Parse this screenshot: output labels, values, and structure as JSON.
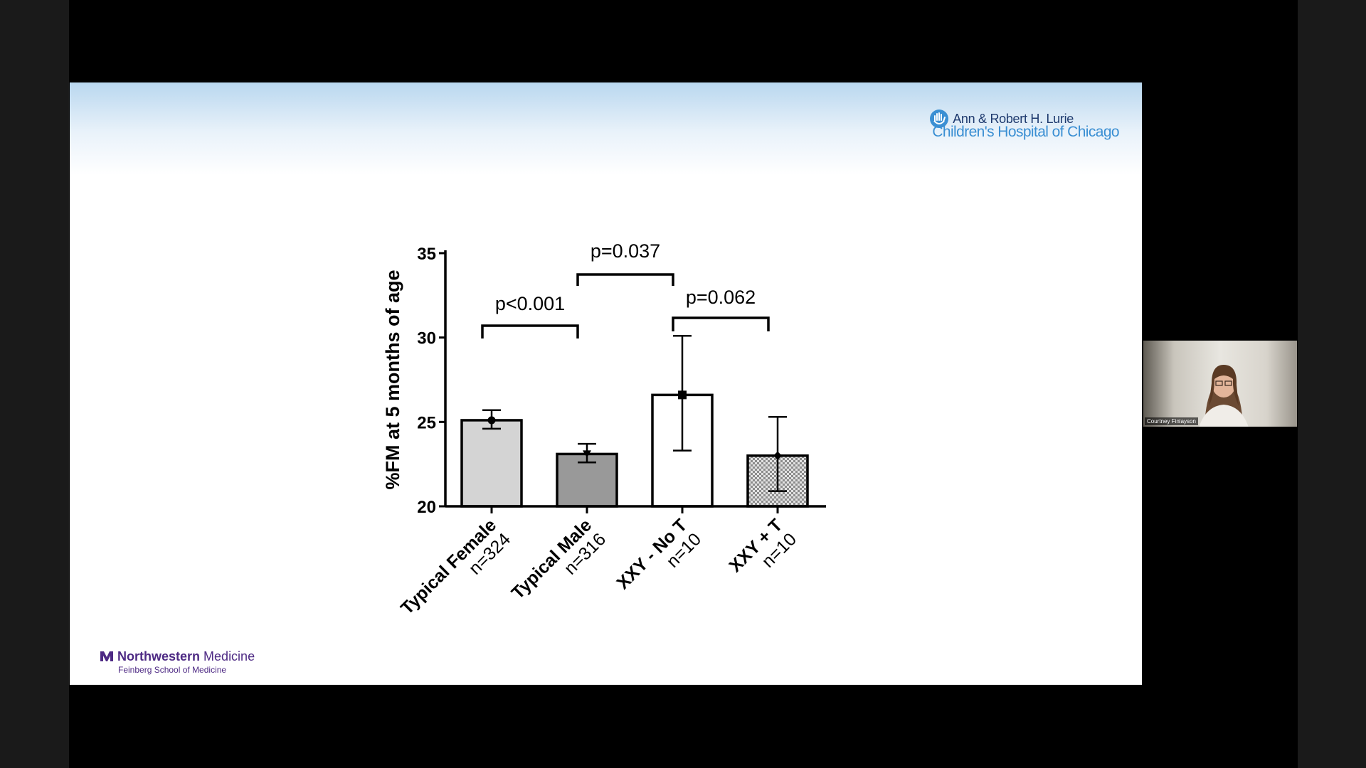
{
  "slide": {
    "top_logo": {
      "line1": "Ann & Robert H. Lurie",
      "line2": "Children's Hospital of Chicago"
    },
    "bottom_logo": {
      "brand_bold": "Northwestern",
      "brand_light": "Medicine",
      "subline": "Feinberg School of Medicine"
    }
  },
  "webcam": {
    "participant_name": "Courtney Finlayson"
  },
  "colors": {
    "bar_fills": [
      "#d4d4d4",
      "#999999",
      "#ffffff",
      "pattern"
    ],
    "axis": "#000000"
  },
  "chart_data": {
    "type": "bar",
    "title": "",
    "ylabel": "%FM at 5 months of age",
    "xlabel": "",
    "ylim": [
      20,
      35
    ],
    "yticks": [
      20,
      25,
      30,
      35
    ],
    "categories": [
      {
        "name": "Typical Female",
        "n": "n=324"
      },
      {
        "name": "Typical Male",
        "n": "n=316"
      },
      {
        "name": "XXY - No T",
        "n": "n=10"
      },
      {
        "name": "XXY + T",
        "n": "n=10"
      }
    ],
    "values": [
      25.1,
      23.1,
      26.6,
      23.0
    ],
    "error_low": [
      24.6,
      22.6,
      23.3,
      20.9
    ],
    "error_high": [
      25.7,
      23.7,
      30.1,
      25.3
    ],
    "comparisons": [
      {
        "from": 0,
        "to": 1,
        "label": "p<0.001"
      },
      {
        "from": 1,
        "to": 2,
        "label": "p=0.037"
      },
      {
        "from": 2,
        "to": 3,
        "label": "p=0.062"
      }
    ],
    "grid": false,
    "legend": "none"
  }
}
